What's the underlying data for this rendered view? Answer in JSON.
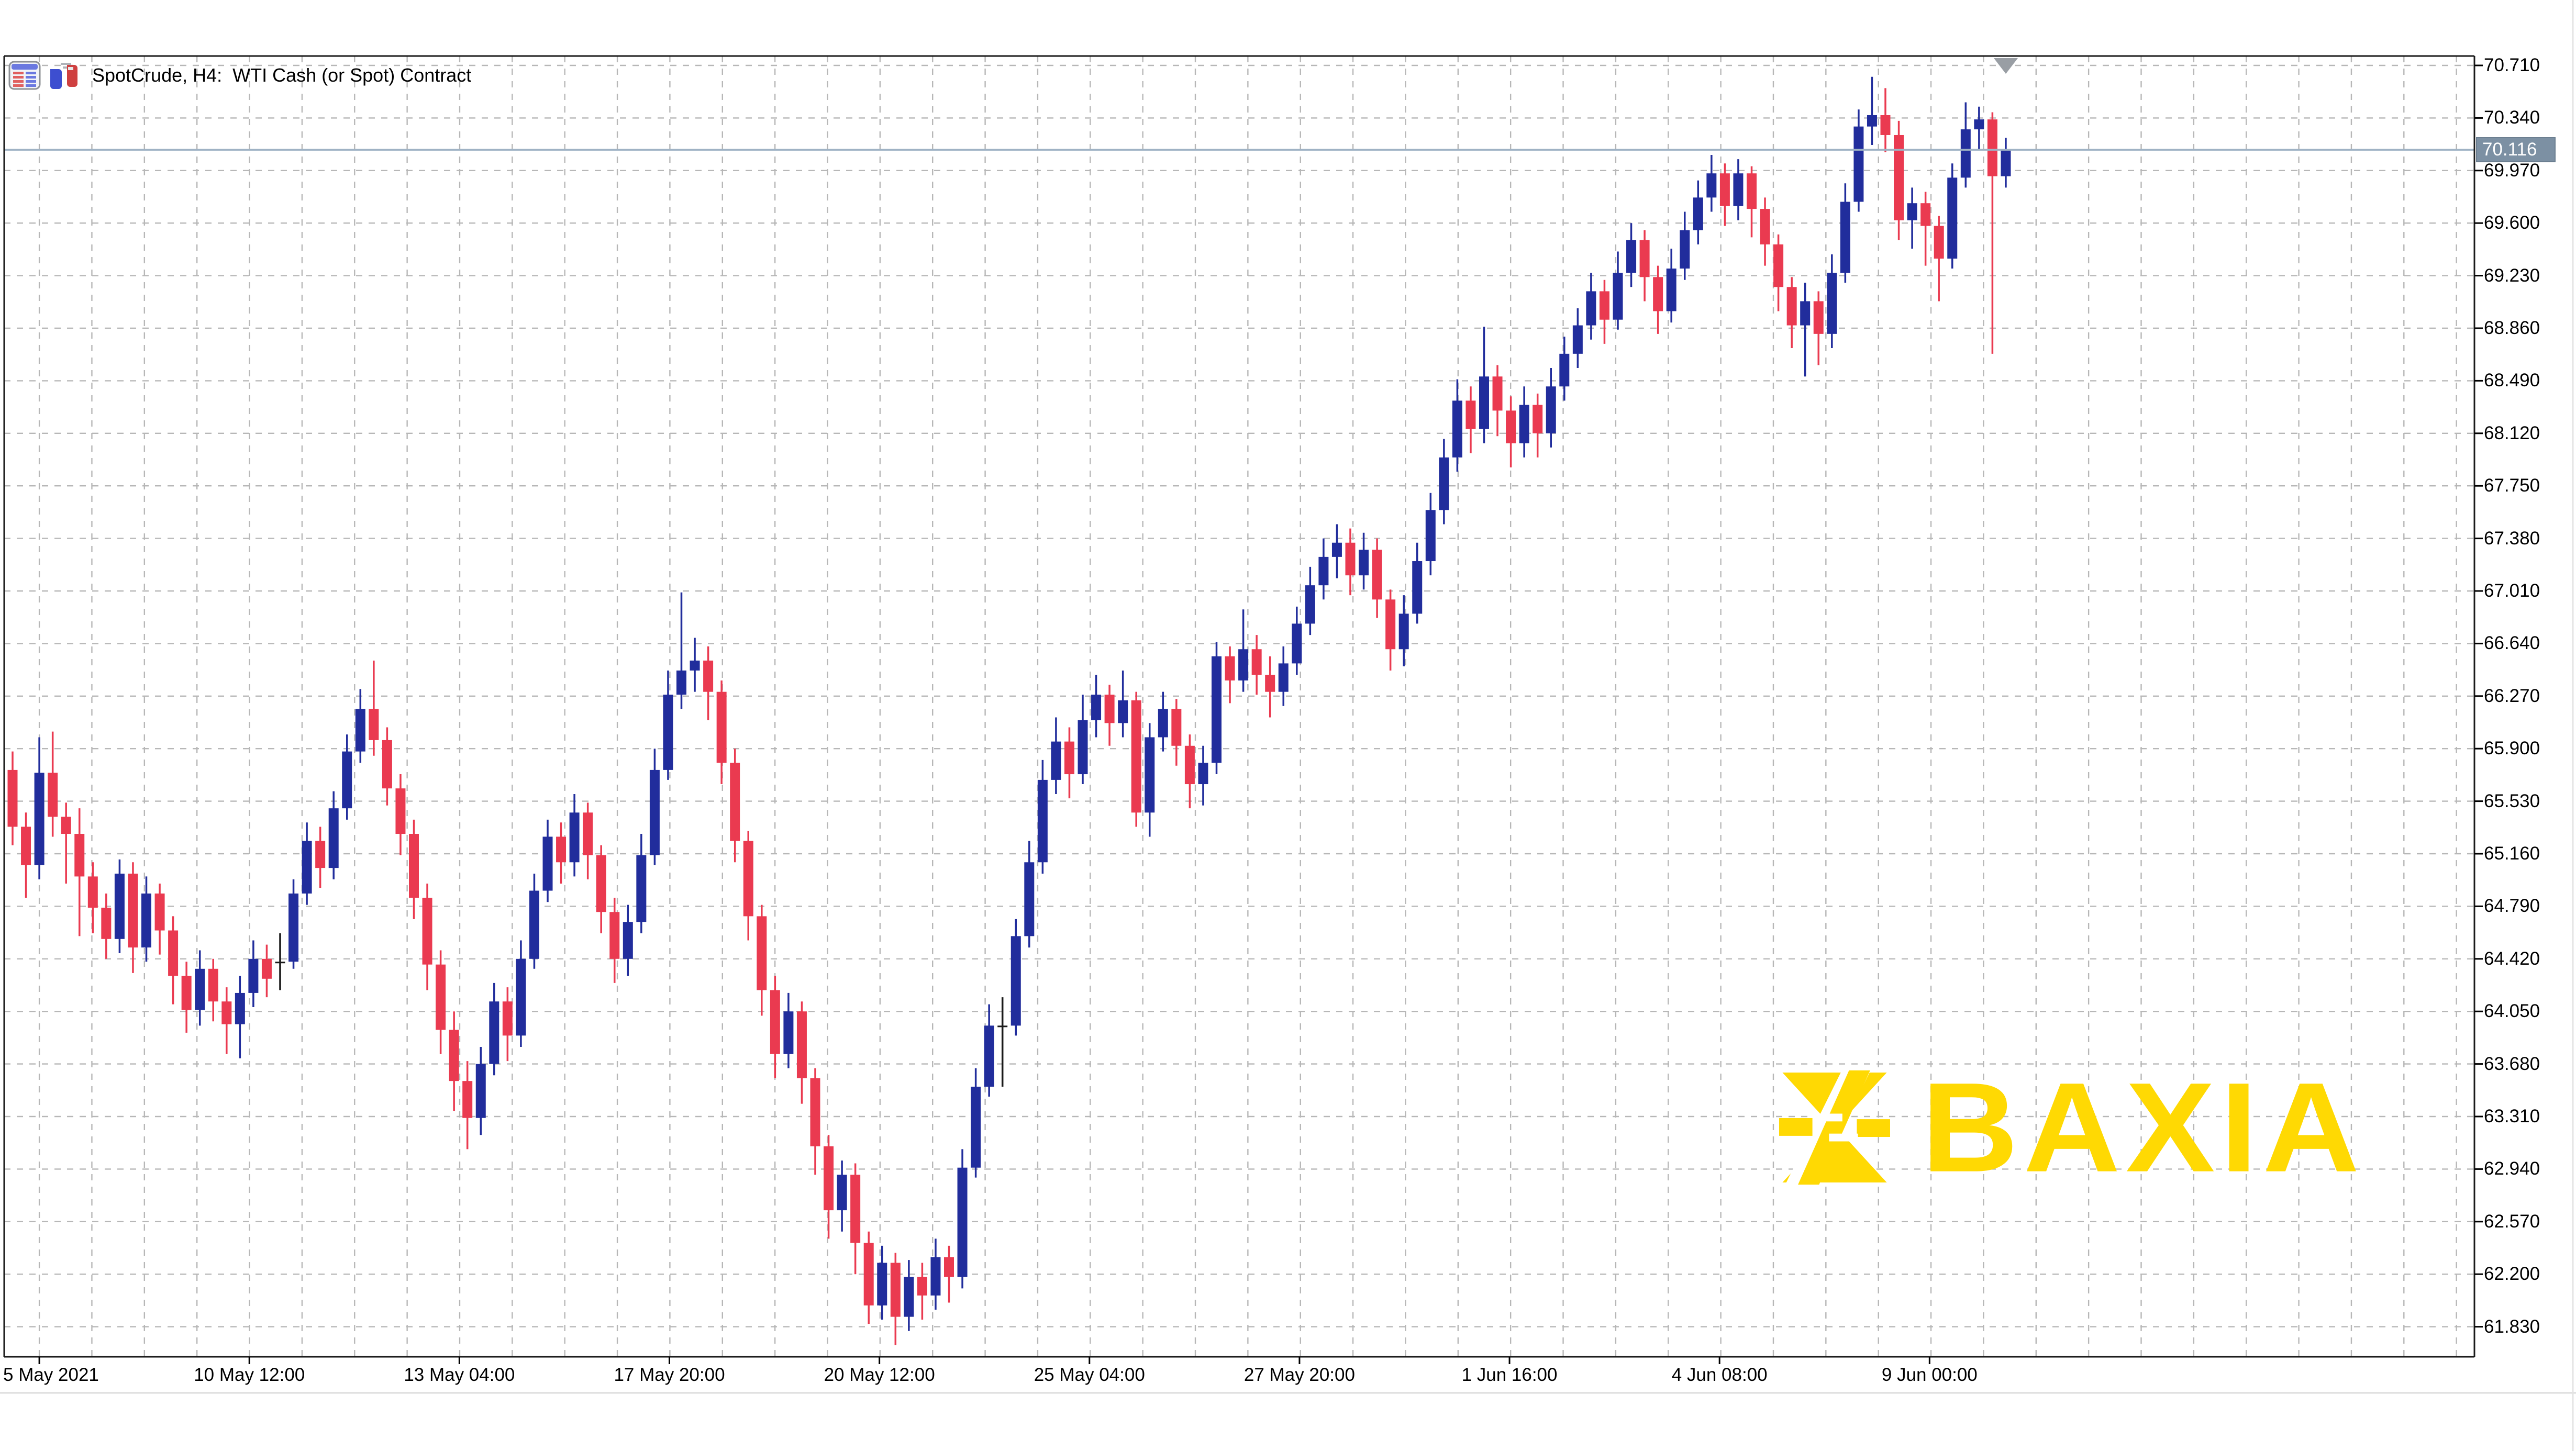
{
  "header": {
    "title": "SpotCrude, H4:  WTI Cash (or Spot) Contract",
    "icons": [
      "market-watch-icon",
      "candlesticks-icon"
    ]
  },
  "watermark": {
    "text": "BAXIA",
    "color": "#FFD903"
  },
  "price_axis": {
    "current_price": "70.116",
    "box_color": "#7C90A3",
    "labels": [
      "70.710",
      "70.340",
      "69.970",
      "69.600",
      "69.230",
      "68.860",
      "68.490",
      "68.120",
      "67.750",
      "67.380",
      "67.010",
      "66.640",
      "66.270",
      "65.900",
      "65.530",
      "65.160",
      "64.790",
      "64.420",
      "64.050",
      "63.680",
      "63.310",
      "62.940",
      "62.570",
      "62.200",
      "61.830"
    ]
  },
  "time_axis": {
    "labels": [
      {
        "text": "5 May 2021",
        "slot": 2
      },
      {
        "text": "10 May 12:00",
        "slot": 17.7
      },
      {
        "text": "13 May 04:00",
        "slot": 33.4
      },
      {
        "text": "17 May 20:00",
        "slot": 49.1
      },
      {
        "text": "20 May 12:00",
        "slot": 64.8
      },
      {
        "text": "25 May 04:00",
        "slot": 80.5
      },
      {
        "text": "27 May 20:00",
        "slot": 96.2
      },
      {
        "text": "1 Jun 16:00",
        "slot": 111.9
      },
      {
        "text": "4 Jun 08:00",
        "slot": 127.6
      },
      {
        "text": "9 Jun 00:00",
        "slot": 143.3
      }
    ]
  },
  "chart_data": {
    "type": "candlestick",
    "symbol": "SpotCrude",
    "timeframe": "H4",
    "description": "WTI Cash (or Spot) Contract",
    "current_price": 70.116,
    "ylim": [
      61.6,
      70.78
    ],
    "grid": true,
    "y_ticks": [
      70.71,
      70.34,
      69.97,
      69.6,
      69.23,
      68.86,
      68.49,
      68.12,
      67.75,
      67.38,
      67.01,
      66.64,
      66.27,
      65.9,
      65.53,
      65.16,
      64.79,
      64.42,
      64.05,
      63.68,
      63.31,
      62.94,
      62.57,
      62.2,
      61.83
    ],
    "colors": {
      "up": "#212D9C",
      "down": "#EA3A50",
      "doji": "#1A1A1A",
      "grid": "#B7B7B7",
      "border": "#1A1A1A",
      "price_line": "#9FB2C4",
      "price_box": "#7C90A3",
      "watermark": "#FFD903"
    },
    "candles": [
      [
        65.75,
        65.88,
        65.22,
        65.35
      ],
      [
        65.35,
        65.45,
        64.85,
        65.08
      ],
      [
        65.08,
        65.98,
        64.98,
        65.73
      ],
      [
        65.73,
        66.02,
        65.28,
        65.42
      ],
      [
        65.42,
        65.52,
        64.95,
        65.3
      ],
      [
        65.3,
        65.48,
        64.58,
        65.0
      ],
      [
        65.0,
        65.1,
        64.6,
        64.78
      ],
      [
        64.78,
        64.88,
        64.42,
        64.56
      ],
      [
        64.56,
        65.12,
        64.46,
        65.02
      ],
      [
        65.02,
        65.1,
        64.32,
        64.5
      ],
      [
        64.5,
        65.0,
        64.4,
        64.88
      ],
      [
        64.88,
        64.95,
        64.45,
        64.62
      ],
      [
        64.62,
        64.72,
        64.1,
        64.3
      ],
      [
        64.3,
        64.4,
        63.9,
        64.06
      ],
      [
        64.06,
        64.48,
        63.95,
        64.35
      ],
      [
        64.35,
        64.42,
        63.98,
        64.12
      ],
      [
        64.12,
        64.22,
        63.75,
        63.96
      ],
      [
        63.96,
        64.3,
        63.72,
        64.18
      ],
      [
        64.18,
        64.55,
        64.08,
        64.42
      ],
      [
        64.42,
        64.52,
        64.15,
        64.28
      ],
      [
        64.4,
        64.6,
        64.2,
        64.4
      ],
      [
        64.4,
        64.98,
        64.35,
        64.88
      ],
      [
        64.88,
        65.38,
        64.8,
        65.25
      ],
      [
        65.25,
        65.35,
        64.92,
        65.06
      ],
      [
        65.06,
        65.6,
        64.98,
        65.48
      ],
      [
        65.48,
        66.0,
        65.4,
        65.88
      ],
      [
        65.88,
        66.32,
        65.8,
        66.18
      ],
      [
        66.18,
        66.52,
        65.85,
        65.96
      ],
      [
        65.96,
        66.05,
        65.5,
        65.62
      ],
      [
        65.62,
        65.72,
        65.15,
        65.3
      ],
      [
        65.3,
        65.4,
        64.7,
        64.85
      ],
      [
        64.85,
        64.95,
        64.2,
        64.38
      ],
      [
        64.38,
        64.48,
        63.75,
        63.92
      ],
      [
        63.92,
        64.05,
        63.35,
        63.56
      ],
      [
        63.56,
        63.7,
        63.08,
        63.3
      ],
      [
        63.3,
        63.8,
        63.18,
        63.68
      ],
      [
        63.68,
        64.25,
        63.6,
        64.12
      ],
      [
        64.12,
        64.22,
        63.7,
        63.88
      ],
      [
        63.88,
        64.55,
        63.8,
        64.42
      ],
      [
        64.42,
        65.02,
        64.35,
        64.9
      ],
      [
        64.9,
        65.4,
        64.82,
        65.28
      ],
      [
        65.28,
        65.38,
        64.95,
        65.1
      ],
      [
        65.1,
        65.58,
        65.0,
        65.45
      ],
      [
        65.45,
        65.52,
        64.98,
        65.15
      ],
      [
        65.15,
        65.22,
        64.6,
        64.75
      ],
      [
        64.75,
        64.85,
        64.25,
        64.42
      ],
      [
        64.42,
        64.8,
        64.3,
        64.68
      ],
      [
        64.68,
        65.3,
        64.6,
        65.15
      ],
      [
        65.15,
        65.9,
        65.08,
        65.75
      ],
      [
        65.75,
        66.45,
        65.68,
        66.28
      ],
      [
        66.28,
        67.0,
        66.18,
        66.45
      ],
      [
        66.45,
        66.68,
        66.3,
        66.52
      ],
      [
        66.52,
        66.62,
        66.1,
        66.3
      ],
      [
        66.3,
        66.38,
        65.65,
        65.8
      ],
      [
        65.8,
        65.9,
        65.1,
        65.25
      ],
      [
        65.25,
        65.32,
        64.55,
        64.72
      ],
      [
        64.72,
        64.8,
        64.02,
        64.2
      ],
      [
        64.2,
        64.3,
        63.58,
        63.75
      ],
      [
        63.75,
        64.18,
        63.65,
        64.05
      ],
      [
        64.05,
        64.12,
        63.4,
        63.58
      ],
      [
        63.58,
        63.65,
        62.9,
        63.1
      ],
      [
        63.1,
        63.18,
        62.45,
        62.65
      ],
      [
        62.65,
        63.0,
        62.5,
        62.9
      ],
      [
        62.9,
        62.98,
        62.2,
        62.42
      ],
      [
        62.42,
        62.5,
        61.85,
        61.98
      ],
      [
        61.98,
        62.4,
        61.88,
        62.28
      ],
      [
        62.28,
        62.35,
        61.7,
        61.9
      ],
      [
        61.9,
        62.3,
        61.8,
        62.18
      ],
      [
        62.18,
        62.28,
        61.88,
        62.05
      ],
      [
        62.05,
        62.45,
        61.95,
        62.32
      ],
      [
        62.32,
        62.4,
        62.0,
        62.18
      ],
      [
        62.18,
        63.08,
        62.1,
        62.95
      ],
      [
        62.95,
        63.65,
        62.88,
        63.52
      ],
      [
        63.52,
        64.1,
        63.45,
        63.95
      ],
      [
        63.95,
        64.15,
        63.52,
        63.95
      ],
      [
        63.95,
        64.7,
        63.88,
        64.58
      ],
      [
        64.58,
        65.25,
        64.5,
        65.1
      ],
      [
        65.1,
        65.82,
        65.02,
        65.68
      ],
      [
        65.68,
        66.12,
        65.58,
        65.95
      ],
      [
        65.95,
        66.05,
        65.55,
        65.72
      ],
      [
        65.72,
        66.28,
        65.65,
        66.1
      ],
      [
        66.1,
        66.42,
        65.98,
        66.28
      ],
      [
        66.28,
        66.35,
        65.92,
        66.08
      ],
      [
        66.08,
        66.45,
        65.98,
        66.24
      ],
      [
        66.24,
        66.3,
        65.35,
        65.45
      ],
      [
        65.45,
        66.08,
        65.28,
        65.98
      ],
      [
        65.98,
        66.3,
        65.88,
        66.18
      ],
      [
        66.18,
        66.25,
        65.78,
        65.92
      ],
      [
        65.92,
        66.0,
        65.48,
        65.65
      ],
      [
        65.65,
        65.92,
        65.5,
        65.8
      ],
      [
        65.8,
        66.65,
        65.72,
        66.55
      ],
      [
        66.55,
        66.62,
        66.22,
        66.38
      ],
      [
        66.38,
        66.88,
        66.3,
        66.6
      ],
      [
        66.6,
        66.7,
        66.28,
        66.42
      ],
      [
        66.42,
        66.55,
        66.12,
        66.3
      ],
      [
        66.3,
        66.62,
        66.2,
        66.5
      ],
      [
        66.5,
        66.9,
        66.42,
        66.78
      ],
      [
        66.78,
        67.18,
        66.7,
        67.05
      ],
      [
        67.05,
        67.38,
        66.95,
        67.25
      ],
      [
        67.25,
        67.48,
        67.1,
        67.35
      ],
      [
        67.35,
        67.45,
        66.98,
        67.12
      ],
      [
        67.12,
        67.42,
        67.02,
        67.3
      ],
      [
        67.3,
        67.38,
        66.82,
        66.95
      ],
      [
        66.95,
        67.02,
        66.45,
        66.6
      ],
      [
        66.6,
        66.98,
        66.48,
        66.85
      ],
      [
        66.85,
        67.35,
        66.78,
        67.22
      ],
      [
        67.22,
        67.7,
        67.12,
        67.58
      ],
      [
        67.58,
        68.08,
        67.48,
        67.95
      ],
      [
        67.95,
        68.5,
        67.85,
        68.35
      ],
      [
        68.35,
        68.45,
        67.98,
        68.15
      ],
      [
        68.15,
        68.87,
        68.05,
        68.52
      ],
      [
        68.52,
        68.6,
        68.1,
        68.28
      ],
      [
        68.28,
        68.38,
        67.88,
        68.05
      ],
      [
        68.05,
        68.45,
        67.95,
        68.32
      ],
      [
        68.32,
        68.4,
        67.95,
        68.12
      ],
      [
        68.12,
        68.58,
        68.02,
        68.45
      ],
      [
        68.45,
        68.8,
        68.35,
        68.68
      ],
      [
        68.68,
        69.0,
        68.58,
        68.88
      ],
      [
        68.88,
        69.25,
        68.78,
        69.12
      ],
      [
        69.12,
        69.2,
        68.75,
        68.92
      ],
      [
        68.92,
        69.4,
        68.85,
        69.25
      ],
      [
        69.25,
        69.6,
        69.15,
        69.48
      ],
      [
        69.48,
        69.55,
        69.05,
        69.22
      ],
      [
        69.22,
        69.3,
        68.82,
        68.98
      ],
      [
        68.98,
        69.42,
        68.9,
        69.28
      ],
      [
        69.28,
        69.68,
        69.2,
        69.55
      ],
      [
        69.55,
        69.9,
        69.45,
        69.78
      ],
      [
        69.78,
        70.08,
        69.68,
        69.95
      ],
      [
        69.95,
        70.02,
        69.58,
        69.72
      ],
      [
        69.72,
        70.05,
        69.62,
        69.95
      ],
      [
        69.95,
        70.0,
        69.5,
        69.7
      ],
      [
        69.7,
        69.78,
        69.3,
        69.45
      ],
      [
        69.45,
        69.52,
        68.98,
        69.15
      ],
      [
        69.15,
        69.22,
        68.72,
        68.88
      ],
      [
        68.88,
        69.18,
        68.52,
        69.05
      ],
      [
        69.05,
        69.12,
        68.6,
        68.82
      ],
      [
        68.82,
        69.38,
        68.72,
        69.25
      ],
      [
        69.25,
        69.88,
        69.18,
        69.75
      ],
      [
        69.75,
        70.4,
        69.68,
        70.28
      ],
      [
        70.28,
        70.63,
        70.15,
        70.36
      ],
      [
        70.36,
        70.55,
        70.1,
        70.22
      ],
      [
        70.22,
        70.32,
        69.48,
        69.62
      ],
      [
        69.62,
        69.85,
        69.42,
        69.74
      ],
      [
        69.74,
        69.82,
        69.3,
        69.58
      ],
      [
        69.58,
        69.65,
        69.05,
        69.35
      ],
      [
        69.35,
        70.02,
        69.28,
        69.92
      ],
      [
        69.92,
        70.45,
        69.85,
        70.26
      ],
      [
        70.26,
        70.42,
        70.12,
        70.33
      ],
      [
        70.33,
        70.38,
        68.68,
        69.93
      ],
      [
        69.93,
        70.2,
        69.85,
        70.12
      ]
    ]
  }
}
